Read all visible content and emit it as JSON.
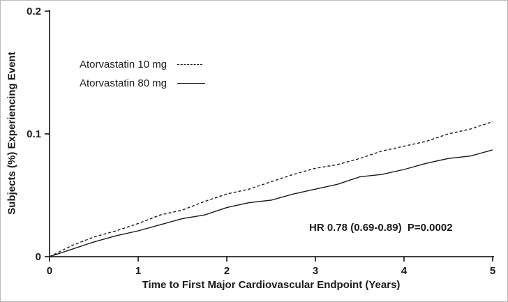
{
  "chart_data": {
    "type": "line",
    "title": "",
    "xlabel": "Time to First Major Cardiovascular Endpoint (Years)",
    "ylabel": "Subjects (%) Experiencing Event",
    "xlim": [
      0,
      5
    ],
    "ylim": [
      0,
      0.2
    ],
    "xticks": [
      0,
      1,
      2,
      3,
      4,
      5
    ],
    "xtick_labels": [
      "0",
      "1",
      "2",
      "3",
      "4",
      "5"
    ],
    "yticks": [
      0,
      0.1,
      0.2
    ],
    "ytick_labels": [
      "0",
      "0.1",
      "0.2"
    ],
    "grid": false,
    "legend_position": "upper-left-inside",
    "annotation": "HR 0.78 (0.69-0.89)  P=0.0002",
    "line_color": "#1a1a1a",
    "axis_color": "#000000",
    "legend": [
      {
        "name": "Atorvastatin 10 mg",
        "style": "dashed"
      },
      {
        "name": "Atorvastatin 80 mg",
        "style": "solid"
      }
    ],
    "x": [
      0,
      0.25,
      0.5,
      0.75,
      1.0,
      1.25,
      1.5,
      1.75,
      2.0,
      2.25,
      2.5,
      2.75,
      3.0,
      3.25,
      3.5,
      3.75,
      4.0,
      4.25,
      4.5,
      4.75,
      5.0
    ],
    "series": [
      {
        "name": "Atorvastatin 10 mg",
        "style": "dashed",
        "values": [
          0,
          0.009,
          0.016,
          0.021,
          0.027,
          0.034,
          0.038,
          0.045,
          0.051,
          0.055,
          0.061,
          0.067,
          0.072,
          0.075,
          0.08,
          0.086,
          0.09,
          0.094,
          0.1,
          0.104,
          0.11
        ]
      },
      {
        "name": "Atorvastatin 80 mg",
        "style": "solid",
        "values": [
          0,
          0.006,
          0.012,
          0.017,
          0.021,
          0.026,
          0.031,
          0.034,
          0.04,
          0.044,
          0.046,
          0.051,
          0.055,
          0.059,
          0.065,
          0.067,
          0.071,
          0.076,
          0.08,
          0.082,
          0.087
        ]
      }
    ]
  }
}
